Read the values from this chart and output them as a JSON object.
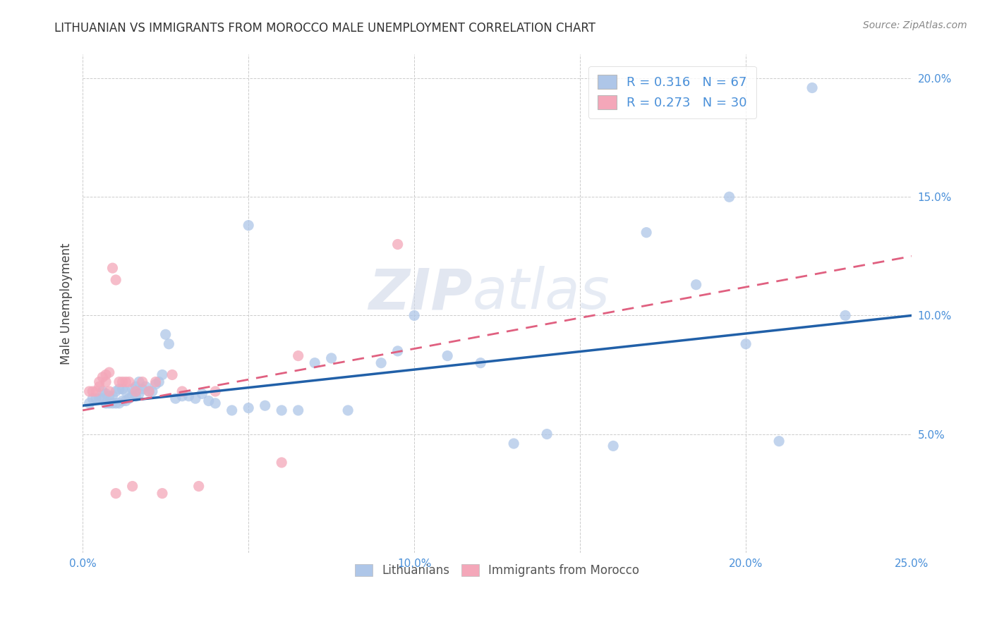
{
  "title": "LITHUANIAN VS IMMIGRANTS FROM MOROCCO MALE UNEMPLOYMENT CORRELATION CHART",
  "source": "Source: ZipAtlas.com",
  "ylabel": "Male Unemployment",
  "xlim": [
    0.0,
    0.25
  ],
  "ylim": [
    0.0,
    0.21
  ],
  "xticks": [
    0.0,
    0.05,
    0.1,
    0.15,
    0.2,
    0.25
  ],
  "yticks": [
    0.0,
    0.05,
    0.1,
    0.15,
    0.2
  ],
  "xtick_labels": [
    "0.0%",
    "",
    "10.0%",
    "",
    "20.0%",
    "25.0%"
  ],
  "ytick_labels": [
    "",
    "5.0%",
    "10.0%",
    "15.0%",
    "20.0%"
  ],
  "legend_entries": [
    {
      "label": "Lithuanians",
      "color": "#aec6e8",
      "R": "0.316",
      "N": "67"
    },
    {
      "label": "Immigrants from Morocco",
      "color": "#f4a7b9",
      "R": "0.273",
      "N": "30"
    }
  ],
  "blue_scatter": "#aec6e8",
  "pink_scatter": "#f4a7b9",
  "trend_blue": "#2160a8",
  "trend_pink": "#e06080",
  "watermark_zip": "ZIP",
  "watermark_atlas": "atlas",
  "background_color": "#ffffff",
  "grid_color": "#cccccc",
  "blue_points_x": [
    0.002,
    0.003,
    0.004,
    0.005,
    0.006,
    0.006,
    0.007,
    0.007,
    0.008,
    0.008,
    0.009,
    0.009,
    0.01,
    0.01,
    0.011,
    0.011,
    0.012,
    0.012,
    0.013,
    0.013,
    0.014,
    0.015,
    0.015,
    0.016,
    0.016,
    0.017,
    0.017,
    0.018,
    0.019,
    0.02,
    0.021,
    0.022,
    0.023,
    0.024,
    0.025,
    0.026,
    0.028,
    0.03,
    0.032,
    0.034,
    0.036,
    0.038,
    0.04,
    0.045,
    0.05,
    0.055,
    0.06,
    0.065,
    0.07,
    0.075,
    0.08,
    0.09,
    0.095,
    0.1,
    0.11,
    0.12,
    0.13,
    0.14,
    0.16,
    0.17,
    0.185,
    0.195,
    0.2,
    0.21,
    0.22,
    0.23,
    0.05
  ],
  "blue_points_y": [
    0.063,
    0.065,
    0.065,
    0.065,
    0.065,
    0.068,
    0.063,
    0.067,
    0.063,
    0.066,
    0.063,
    0.066,
    0.063,
    0.068,
    0.063,
    0.069,
    0.064,
    0.069,
    0.064,
    0.068,
    0.065,
    0.066,
    0.069,
    0.066,
    0.07,
    0.067,
    0.072,
    0.069,
    0.07,
    0.068,
    0.068,
    0.071,
    0.072,
    0.075,
    0.092,
    0.088,
    0.065,
    0.066,
    0.066,
    0.065,
    0.067,
    0.064,
    0.063,
    0.06,
    0.061,
    0.062,
    0.06,
    0.06,
    0.08,
    0.082,
    0.06,
    0.08,
    0.085,
    0.1,
    0.083,
    0.08,
    0.046,
    0.05,
    0.045,
    0.135,
    0.113,
    0.15,
    0.088,
    0.047,
    0.196,
    0.1,
    0.138
  ],
  "pink_points_x": [
    0.002,
    0.003,
    0.004,
    0.005,
    0.005,
    0.006,
    0.007,
    0.007,
    0.008,
    0.008,
    0.009,
    0.01,
    0.011,
    0.012,
    0.013,
    0.014,
    0.016,
    0.018,
    0.02,
    0.022,
    0.024,
    0.027,
    0.03,
    0.035,
    0.04,
    0.06,
    0.065,
    0.095,
    0.01,
    0.015
  ],
  "pink_points_y": [
    0.068,
    0.068,
    0.068,
    0.07,
    0.072,
    0.074,
    0.072,
    0.075,
    0.068,
    0.076,
    0.12,
    0.115,
    0.072,
    0.072,
    0.072,
    0.072,
    0.068,
    0.072,
    0.068,
    0.072,
    0.025,
    0.075,
    0.068,
    0.028,
    0.068,
    0.038,
    0.083,
    0.13,
    0.025,
    0.028
  ]
}
